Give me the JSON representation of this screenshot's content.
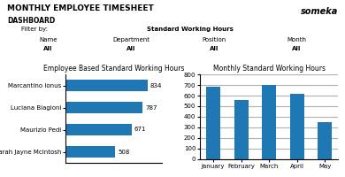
{
  "title": "MONTHLY EMPLOYEE TIMESHEET",
  "subtitle": "DASHBOARD",
  "annotations": [
    "someka",
    "Filter by:",
    "Standard Working Hours",
    "Name",
    "All",
    "Department",
    "All",
    "Position",
    "All",
    "Month",
    "All"
  ],
  "chart_data": [
    {
      "type": "bar",
      "orientation": "horizontal",
      "title": "Employee Based Standard Working Hours",
      "categories": [
        "Marcantino Ionus",
        "Luciana Biagioni",
        "Maurizio Pedi",
        "Sarah Jayne Mcintosh"
      ],
      "values": [
        834,
        787,
        671,
        508
      ],
      "xlim": [
        0,
        984.12
      ],
      "xticks": [],
      "data_labels": true,
      "tick_labels": "y",
      "grid": false
    },
    {
      "type": "bar",
      "title": "Monthly Standard Working Hours",
      "categories": [
        "January",
        "February",
        "March",
        "April",
        "May"
      ],
      "values": [
        680,
        560,
        700,
        620,
        350
      ],
      "ylim": [
        0,
        800
      ],
      "yticks": [
        0,
        100,
        200,
        300,
        400,
        500,
        600,
        700,
        800
      ],
      "grid": true
    }
  ]
}
